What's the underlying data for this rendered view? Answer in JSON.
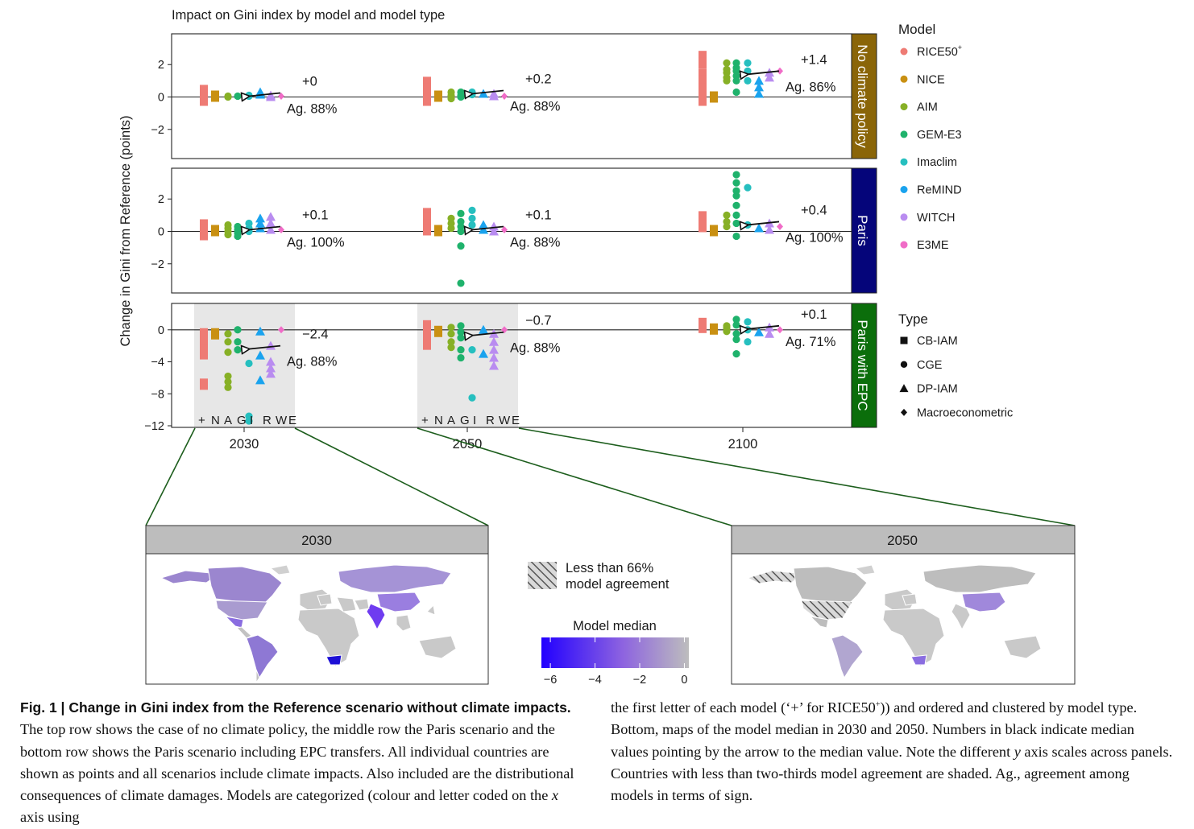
{
  "chart_data": {
    "type": "scatter",
    "title": "Impact on Gini index by model and model type",
    "ylabel": "Change in Gini from Reference (points)",
    "x_categories": [
      "2030",
      "2050",
      "2100"
    ],
    "model_letters": [
      "+",
      "N",
      "A",
      "G",
      "I",
      "R",
      "W",
      "E"
    ],
    "legend_model_title": "Model",
    "legend_models": [
      {
        "name": "RICE50",
        "sup": "+",
        "color": "#ee7b74"
      },
      {
        "name": "NICE",
        "color": "#c99012"
      },
      {
        "name": "AIM",
        "color": "#87b026"
      },
      {
        "name": "GEM-E3",
        "color": "#1fb26c"
      },
      {
        "name": "Imaclim",
        "color": "#26bfbf"
      },
      {
        "name": "ReMIND",
        "color": "#1aa3ee"
      },
      {
        "name": "WITCH",
        "color": "#b98cf0"
      },
      {
        "name": "E3ME",
        "color": "#f06cc7"
      }
    ],
    "legend_type_title": "Type",
    "legend_types": [
      {
        "name": "CB-IAM",
        "shape": "square"
      },
      {
        "name": "CGE",
        "shape": "circle"
      },
      {
        "name": "DP-IAM",
        "shape": "triangle"
      },
      {
        "name": "Macroeconometric",
        "shape": "diamond"
      }
    ],
    "panels": [
      {
        "strip": "No climate policy",
        "strip_color": "#8a6508",
        "ylim": [
          -3.8,
          3.9
        ],
        "yticks": [
          "2",
          "0",
          "−2"
        ],
        "ytick_values": [
          2,
          0,
          -2
        ],
        "shaded_years": [],
        "annotations": [
          {
            "value": "+0",
            "agreement": "Ag. 88%",
            "median": 0.05
          },
          {
            "value": "+0.2",
            "agreement": "Ag. 88%",
            "median": 0.2
          },
          {
            "value": "+1.4",
            "agreement": "Ag. 86%",
            "median": 1.4
          }
        ],
        "years": [
          [
            [
              0.4,
              0.1,
              -0.2
            ],
            [
              0.05
            ],
            [
              0.05,
              0.0
            ],
            [
              0.05
            ],
            [
              0.05,
              0.1
            ],
            [
              0.15,
              0.3
            ],
            [
              0.1,
              0.0
            ],
            [
              0.05
            ]
          ],
          [
            [
              0.9,
              0.5,
              0.2,
              -0.2
            ],
            [
              0.05
            ],
            [
              0.3,
              0.1,
              -0.1
            ],
            [
              0.3,
              0.1,
              0.0
            ],
            [
              0.3,
              0.15
            ],
            [
              0.2
            ],
            [
              0.2,
              0.05
            ],
            [
              0.05
            ]
          ],
          [
            [
              2.5,
              2.1,
              1.4,
              1.0,
              0.5,
              0.2,
              -0.2
            ],
            [
              0.0
            ],
            [
              2.1,
              1.7,
              1.5,
              1.2,
              1.0
            ],
            [
              2.1,
              1.8,
              1.6,
              1.3,
              1.0,
              0.3
            ],
            [
              2.1,
              1.6,
              1.0
            ],
            [
              1.0,
              0.6,
              0.2
            ],
            [
              1.5,
              1.2
            ],
            [
              1.6
            ]
          ]
        ]
      },
      {
        "strip": "Paris",
        "strip_color": "#05057a",
        "ylim": [
          -3.8,
          3.9
        ],
        "yticks": [
          "2",
          "0",
          "−2"
        ],
        "ytick_values": [
          2,
          0,
          -2
        ],
        "shaded_years": [],
        "annotations": [
          {
            "value": "+0.1",
            "agreement": "Ag. 100%",
            "median": 0.1
          },
          {
            "value": "+0.1",
            "agreement": "Ag. 88%",
            "median": 0.1
          },
          {
            "value": "+0.4",
            "agreement": "Ag. 100%",
            "median": 0.4
          }
        ],
        "years": [
          [
            [
              0.4,
              0.1,
              -0.2
            ],
            [
              0.05
            ],
            [
              0.4,
              0.2,
              0.0,
              -0.2
            ],
            [
              0.3,
              0.1,
              -0.1,
              -0.3
            ],
            [
              0.5,
              0.2,
              0.0
            ],
            [
              0.8,
              0.5,
              0.2
            ],
            [
              0.9,
              0.5,
              0.1
            ],
            [
              0.1
            ]
          ],
          [
            [
              1.1,
              0.8,
              0.4,
              0.1
            ],
            [
              0.05
            ],
            [
              0.8,
              0.5,
              0.2
            ],
            [
              1.1,
              0.6,
              0.3,
              0.0,
              -0.9,
              -3.2
            ],
            [
              1.3,
              0.8,
              0.4
            ],
            [
              0.4,
              0.1
            ],
            [
              0.3,
              0.0
            ],
            [
              0.1
            ]
          ],
          [
            [
              0.9,
              0.6,
              0.3
            ],
            [
              0.05
            ],
            [
              1.0,
              0.6,
              0.3
            ],
            [
              3.5,
              3.0,
              2.5,
              2.2,
              1.6,
              1.0,
              0.5,
              -0.3
            ],
            [
              2.7,
              0.4
            ],
            [
              0.2
            ],
            [
              0.5,
              0.1
            ],
            [
              0.3
            ]
          ]
        ]
      },
      {
        "strip": "Paris with EPC",
        "strip_color": "#0b6e0b",
        "ylim": [
          -12.2,
          3.3
        ],
        "yticks": [
          "0",
          "−4",
          "−8",
          "−12"
        ],
        "ytick_values": [
          0,
          -4,
          -8,
          -12
        ],
        "shaded_years": [
          0,
          1
        ],
        "annotations": [
          {
            "value": "−2.4",
            "agreement": "Ag. 88%",
            "median": -2.4
          },
          {
            "value": "−0.7",
            "agreement": "Ag. 88%",
            "median": -0.7
          },
          {
            "value": "+0.1",
            "agreement": "Ag. 71%",
            "median": 0.1
          }
        ],
        "years": [
          [
            [
              -0.5,
              -1.5,
              -2.5,
              -3.0,
              -6.8
            ],
            [
              -0.5
            ],
            [
              -0.5,
              -1.5,
              -2.8,
              -5.8,
              -6.5,
              -7.2
            ],
            [
              0.0,
              -1.5,
              -2.5
            ],
            [
              -4.2,
              -10.8,
              -11.4
            ],
            [
              -0.2,
              -3.2,
              -6.3
            ],
            [
              -2.0,
              -4.0,
              -4.8,
              -5.5
            ],
            [
              0.0
            ]
          ],
          [
            [
              0.5,
              -0.5,
              -1.8
            ],
            [
              -0.2
            ],
            [
              0.3,
              -0.5,
              -1.5,
              -2.2
            ],
            [
              0.5,
              -0.3,
              -1.0,
              -2.5,
              -3.5
            ],
            [
              -2.5,
              -8.5
            ],
            [
              0.0,
              -3.0
            ],
            [
              -0.5,
              -1.5,
              -2.5,
              -3.5,
              -4.5
            ],
            [
              0.0
            ]
          ],
          [
            [
              0.8,
              0.3
            ],
            [
              0.1
            ],
            [
              0.5,
              0.2,
              -0.2
            ],
            [
              1.3,
              0.6,
              -0.5,
              -1.2,
              -3.0
            ],
            [
              1.0,
              0.0,
              -1.5
            ],
            [
              -0.3
            ],
            [
              0.3,
              -0.5
            ],
            [
              0.0
            ]
          ]
        ]
      }
    ],
    "maps": [
      {
        "title": "2030"
      },
      {
        "title": "2050"
      }
    ],
    "hatch_legend": [
      "Less than 66%",
      "model agreement"
    ],
    "colorbar": {
      "title": "Model median",
      "ticks": [
        "−6",
        "−4",
        "−2",
        "0"
      ],
      "tick_values": [
        -6,
        -4,
        -2,
        0
      ],
      "range": [
        -6.4,
        0.2
      ],
      "colors": [
        "#2200ff",
        "#8d63e0",
        "#bdbdbd"
      ]
    }
  },
  "caption": {
    "fig_label": "Fig. 1 | ",
    "bold_title": "Change in Gini index from the Reference scenario without climate impacts.",
    "left_text": " The top row shows the case of no climate policy, the middle row the Paris scenario and the bottom row shows the Paris scenario including EPC transfers. All individual countries are shown as points and all scenarios include climate impacts. Also included are the distributional consequences of climate damages. Models are categorized (colour and letter coded on the ",
    "left_italic": "x",
    "left_tail": " axis using",
    "right_1": "the first letter of each model (‘+’ for RICE50",
    "right_sup": "+",
    "right_2": ")) and ordered and clustered by model type. Bottom, maps of the model median in 2030 and 2050. Numbers in black indicate median values pointing by the arrow to the median value. Note the different ",
    "right_italic": "y",
    "right_3": " axis scales across panels. Countries with less than two-thirds model agreement are shaded. Ag., agreement among models in terms of sign."
  }
}
